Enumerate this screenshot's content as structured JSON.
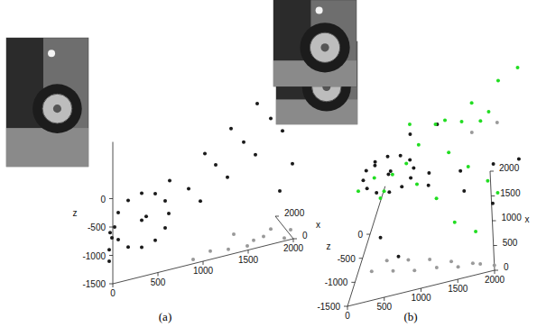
{
  "chart_data": [
    {
      "type": "scatter3d",
      "caption": "(a)",
      "xlabel": "x",
      "zlabel": "z",
      "grid": false,
      "xlim": [
        0,
        2000
      ],
      "ylim": [
        0,
        2000
      ],
      "zlim": [
        -1500,
        1000
      ],
      "xticks": [
        0,
        2000
      ],
      "yticks": [
        0,
        500,
        1000,
        1500,
        2000
      ],
      "zticks": [
        -1500,
        -1000,
        -500,
        0
      ],
      "series": [
        {
          "color": "#999999",
          "marker": "dot",
          "x": [
            200,
            100,
            300,
            0,
            400,
            200,
            500,
            300,
            600,
            100
          ],
          "y": [
            1300,
            1500,
            1700,
            1900,
            1600,
            1100,
            1800,
            2000,
            1400,
            900
          ],
          "z": [
            -1450,
            -1450,
            -1400,
            -1450,
            -1450,
            -1400,
            -1350,
            -1400,
            -1300,
            -1450
          ]
        },
        {
          "color": "#1a1a1a",
          "marker": "dot",
          "x": [
            800,
            800,
            800,
            800,
            800,
            800,
            800,
            800,
            800,
            800,
            800,
            800,
            800,
            800,
            900,
            900,
            900,
            900,
            600,
            600,
            500,
            500,
            400,
            300,
            300,
            200,
            200,
            700,
            800,
            900,
            1000,
            100,
            0
          ],
          "y": [
            700,
            660,
            550,
            400,
            250,
            140,
            100,
            140,
            250,
            400,
            550,
            660,
            400,
            450,
            50,
            50,
            80,
            60,
            900,
            1200,
            1500,
            1800,
            2000,
            1000,
            1300,
            1600,
            1900,
            700,
            1100,
            1400,
            1700,
            2000,
            1850
          ],
          "z": [
            -700,
            -462,
            -288,
            -224,
            -288,
            -462,
            -700,
            -938,
            -1112,
            -1176,
            -1112,
            -938,
            -700,
            -650,
            -1300,
            -1100,
            -900,
            -800,
            -300,
            0,
            300,
            600,
            900,
            -500,
            -200,
            100,
            400,
            -100,
            200,
            500,
            800,
            -200,
            -600
          ]
        }
      ]
    },
    {
      "type": "scatter3d",
      "caption": "(b)",
      "xlabel": "x",
      "zlabel": "z",
      "grid": false,
      "xlim": [
        0,
        2000
      ],
      "ylim": [
        0,
        2000
      ],
      "zlim": [
        -1500,
        1000
      ],
      "xticks": [
        0,
        500,
        1000,
        1500,
        2000
      ],
      "yticks": [
        0,
        500,
        1000,
        1500,
        2000
      ],
      "zticks": [
        -1500,
        -1000,
        -500,
        0
      ],
      "series": [
        {
          "color": "#9a9a9a",
          "marker": "dot",
          "x": [
            400,
            350,
            300,
            250,
            200,
            150,
            100,
            500,
            450,
            400,
            300,
            200,
            1800,
            1700
          ],
          "y": [
            300,
            600,
            900,
            1200,
            1500,
            1800,
            2000,
            500,
            800,
            1100,
            1400,
            1700,
            1500,
            1800
          ],
          "z": [
            -1300,
            -1350,
            -1400,
            -1400,
            -1450,
            -1450,
            -1500,
            -1250,
            -1300,
            -1350,
            -1400,
            -1450,
            -300,
            -100
          ]
        },
        {
          "color": "#1a1a1a",
          "marker": "dot",
          "x": [
            1550,
            1730,
            1862,
            1910,
            1862,
            1730,
            1550,
            1370,
            1238,
            1190,
            1238,
            1370,
            1550,
            1600,
            1200,
            1000,
            800,
            600,
            1400,
            1200,
            900,
            1800,
            1600,
            500,
            300,
            1700
          ],
          "y": [
            743,
            697,
            572,
            400,
            228,
            103,
            57,
            103,
            228,
            400,
            572,
            697,
            400,
            430,
            900,
            1300,
            1700,
            2000,
            1000,
            1500,
            1900,
            600,
            900,
            300,
            600,
            200
          ],
          "z": [
            -500,
            -500,
            -500,
            -500,
            -500,
            -500,
            -500,
            -500,
            -500,
            -500,
            -500,
            -500,
            -500,
            -500,
            -300,
            -200,
            0,
            200,
            -800,
            -900,
            -1000,
            0,
            300,
            -700,
            -1000,
            -400
          ]
        },
        {
          "color": "#22dd22",
          "marker": "dot",
          "x": [
            1800,
            1900,
            1700,
            1900,
            2000,
            1950,
            2000,
            1900,
            1600,
            1400,
            1200,
            1000,
            1500,
            1300,
            1100,
            800,
            600,
            1800,
            1600,
            1700,
            2000,
            1900,
            1500,
            1200
          ],
          "y": [
            100,
            300,
            500,
            800,
            1100,
            1400,
            1700,
            1900,
            1200,
            1500,
            1800,
            1950,
            600,
            800,
            1100,
            1400,
            1700,
            1300,
            1600,
            900,
            600,
            1600,
            400,
            300
          ],
          "z": [
            -1000,
            -900,
            -700,
            -400,
            -100,
            200,
            500,
            800,
            -400,
            -600,
            -800,
            -900,
            -300,
            -600,
            -800,
            -1100,
            -1200,
            0,
            300,
            200,
            0,
            -200,
            -800,
            -600
          ]
        }
      ]
    }
  ]
}
